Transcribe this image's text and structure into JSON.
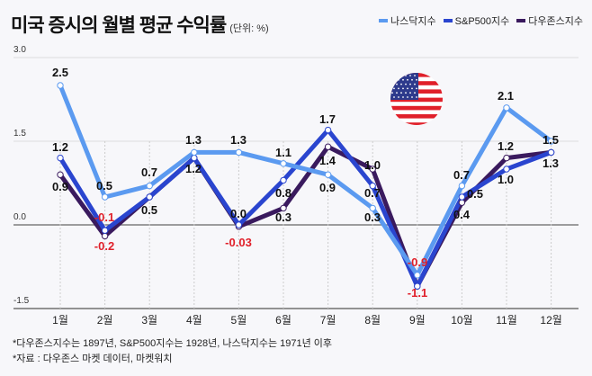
{
  "title": "미국 증시의 월별 평균 수익률",
  "unit": "(단위: %)",
  "footnotes": [
    "*다우존스지수는 1897년, S&P500지수는 1928년, 나스닥지수는 1971년 이후",
    "*자료 : 다우존스 마켓 데이터, 마켓워치"
  ],
  "chart_data": {
    "type": "line",
    "categories": [
      "1월",
      "2월",
      "3월",
      "4월",
      "5월",
      "6월",
      "7월",
      "8월",
      "9월",
      "10월",
      "11월",
      "12월"
    ],
    "ylim": [
      -1.5,
      3.0
    ],
    "yticks": [
      "3.0",
      "1.5",
      "0.0",
      "-1.5"
    ],
    "grid": true,
    "legend_position": "top-right",
    "series": [
      {
        "name": "나스닥지수",
        "color": "#5b9af0",
        "values": [
          2.5,
          0.5,
          0.7,
          1.3,
          1.3,
          1.1,
          0.9,
          0.3,
          -0.9,
          0.7,
          2.1,
          1.5
        ]
      },
      {
        "name": "S&P500지수",
        "color": "#2a45cf",
        "values": [
          1.2,
          -0.1,
          0.5,
          1.2,
          0.0,
          0.8,
          1.7,
          0.7,
          -1.1,
          0.5,
          1.0,
          1.3
        ]
      },
      {
        "name": "다우존스지수",
        "color": "#3a1a5e",
        "values": [
          0.9,
          -0.2,
          0.5,
          1.2,
          -0.03,
          0.3,
          1.4,
          1.0,
          -1.1,
          0.4,
          1.2,
          1.3
        ]
      }
    ],
    "data_labels": [
      {
        "month": "1월",
        "text": "2.5"
      },
      {
        "month": "1월",
        "text": "1.2"
      },
      {
        "month": "1월",
        "text": "0.9"
      },
      {
        "month": "2월",
        "text": "0.5"
      },
      {
        "month": "2월",
        "text": "-0.1"
      },
      {
        "month": "2월",
        "text": "-0.2"
      },
      {
        "month": "3월",
        "text": "0.7"
      },
      {
        "month": "3월",
        "text": "0.5"
      },
      {
        "month": "4월",
        "text": "1.3"
      },
      {
        "month": "4월",
        "text": "1.2"
      },
      {
        "month": "5월",
        "text": "1.3"
      },
      {
        "month": "5월",
        "text": "0.0"
      },
      {
        "month": "5월",
        "text": "-0.03"
      },
      {
        "month": "6월",
        "text": "1.1"
      },
      {
        "month": "6월",
        "text": "0.8"
      },
      {
        "month": "6월",
        "text": "0.3"
      },
      {
        "month": "7월",
        "text": "1.7"
      },
      {
        "month": "7월",
        "text": "1.4"
      },
      {
        "month": "7월",
        "text": "0.9"
      },
      {
        "month": "8월",
        "text": "1.0"
      },
      {
        "month": "8월",
        "text": "0.7"
      },
      {
        "month": "8월",
        "text": "0.3"
      },
      {
        "month": "9월",
        "text": "-0.9"
      },
      {
        "month": "9월",
        "text": "-1.1"
      },
      {
        "month": "10월",
        "text": "0.7"
      },
      {
        "month": "10월",
        "text": "0.5"
      },
      {
        "month": "10월",
        "text": "0.4"
      },
      {
        "month": "11월",
        "text": "2.1"
      },
      {
        "month": "11월",
        "text": "1.2"
      },
      {
        "month": "11월",
        "text": "1.0"
      },
      {
        "month": "12월",
        "text": "1.5"
      },
      {
        "month": "12월",
        "text": "1.3"
      }
    ],
    "negative_label_color": "#e0202a"
  }
}
